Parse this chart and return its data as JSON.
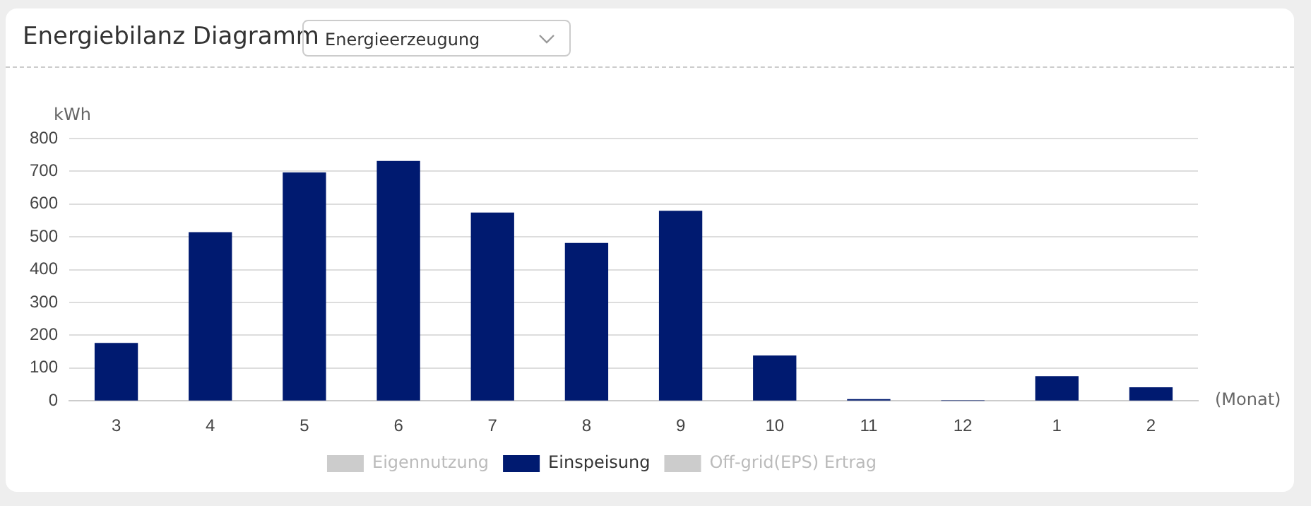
{
  "chart_data": {
    "type": "bar",
    "title": "Energiebilanz Diagramm",
    "annotations": [
      "Energieerzeugung"
    ],
    "ylabel": "kWh",
    "xlabel": "(Monat)",
    "categories": [
      "3",
      "4",
      "5",
      "6",
      "7",
      "8",
      "9",
      "10",
      "11",
      "12",
      "1",
      "2"
    ],
    "series": [
      {
        "name": "Eigennutzung",
        "color": "#cccccc",
        "values": [
          null,
          null,
          null,
          null,
          null,
          null,
          null,
          null,
          null,
          null,
          null,
          null
        ]
      },
      {
        "name": "Einspeisung",
        "color": "#001a70",
        "values": [
          175,
          513,
          695,
          730,
          573,
          480,
          578,
          137,
          4,
          0,
          74,
          40
        ]
      },
      {
        "name": "Off-grid(EPS) Ertrag",
        "color": "#cccccc",
        "values": [
          null,
          null,
          null,
          null,
          null,
          null,
          null,
          null,
          null,
          null,
          null,
          null
        ]
      }
    ],
    "ylim": [
      0,
      800
    ],
    "yticks": [
      0,
      100,
      200,
      300,
      400,
      500,
      600,
      700,
      800
    ],
    "grid": "y",
    "legend": "bottom"
  }
}
